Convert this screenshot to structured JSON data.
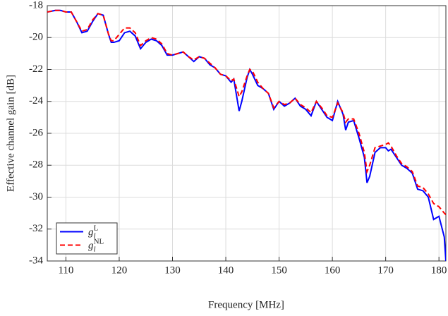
{
  "chart_data": {
    "type": "line",
    "xlabel": "Frequency [MHz]",
    "ylabel": "Effective channel gain [dB]",
    "x": [
      106.5,
      108,
      109,
      110,
      111,
      112,
      113,
      114,
      115,
      116,
      117,
      118,
      118.5,
      119,
      120,
      121,
      122,
      123,
      124,
      125,
      126,
      127,
      128,
      129,
      130,
      131,
      132,
      133,
      134,
      135,
      136,
      137,
      138,
      139,
      140,
      141,
      141.5,
      142.5,
      143,
      144,
      144.5,
      145,
      146,
      147,
      148,
      149,
      150,
      151,
      152,
      153,
      154,
      155,
      156,
      157,
      158,
      159,
      160,
      161,
      162,
      162.5,
      163,
      164,
      165,
      166,
      166.5,
      167,
      168,
      169,
      170,
      170.5,
      171,
      172,
      173,
      174,
      175,
      176,
      177,
      178,
      179,
      180,
      181,
      181.3
    ],
    "series": [
      {
        "name": "g",
        "subscript": "l",
        "superscript": "L",
        "color": "#0000ff",
        "dash": "solid",
        "values": [
          -18.4,
          -18.3,
          -18.3,
          -18.4,
          -18.4,
          -19.0,
          -19.7,
          -19.6,
          -19.0,
          -18.5,
          -18.6,
          -19.8,
          -20.3,
          -20.3,
          -20.2,
          -19.7,
          -19.6,
          -19.9,
          -20.7,
          -20.3,
          -20.1,
          -20.2,
          -20.5,
          -21.1,
          -21.1,
          -21.0,
          -20.9,
          -21.2,
          -21.5,
          -21.2,
          -21.3,
          -21.7,
          -21.9,
          -22.3,
          -22.4,
          -22.8,
          -22.6,
          -24.6,
          -24.0,
          -22.5,
          -22.0,
          -22.3,
          -23.0,
          -23.2,
          -23.5,
          -24.5,
          -24.0,
          -24.3,
          -24.1,
          -23.8,
          -24.3,
          -24.5,
          -24.9,
          -24.0,
          -24.5,
          -25.0,
          -25.2,
          -24.0,
          -24.8,
          -25.8,
          -25.3,
          -25.2,
          -26.3,
          -27.5,
          -29.1,
          -28.7,
          -27.2,
          -26.9,
          -26.9,
          -27.1,
          -27.0,
          -27.5,
          -28.0,
          -28.2,
          -28.5,
          -29.5,
          -29.6,
          -30.0,
          -31.4,
          -31.2,
          -32.5,
          -34.0
        ]
      },
      {
        "name": "g",
        "subscript": "l",
        "superscript": "NL",
        "color": "#ff0000",
        "dash": "dashed",
        "values": [
          -18.4,
          -18.3,
          -18.3,
          -18.4,
          -18.4,
          -19.0,
          -19.6,
          -19.5,
          -18.9,
          -18.5,
          -18.6,
          -19.8,
          -20.2,
          -20.2,
          -19.8,
          -19.4,
          -19.4,
          -19.7,
          -20.5,
          -20.2,
          -20.0,
          -20.1,
          -20.4,
          -21.0,
          -21.1,
          -21.0,
          -20.9,
          -21.2,
          -21.4,
          -21.2,
          -21.3,
          -21.6,
          -21.9,
          -22.3,
          -22.4,
          -22.7,
          -22.6,
          -23.7,
          -23.4,
          -22.4,
          -22.0,
          -22.1,
          -22.8,
          -23.2,
          -23.5,
          -24.4,
          -24.0,
          -24.2,
          -24.1,
          -23.8,
          -24.2,
          -24.4,
          -24.7,
          -24.0,
          -24.4,
          -24.9,
          -25.0,
          -24.1,
          -24.7,
          -25.3,
          -25.1,
          -25.1,
          -26.0,
          -27.2,
          -28.4,
          -28.0,
          -26.9,
          -26.8,
          -26.7,
          -26.6,
          -26.8,
          -27.4,
          -27.9,
          -28.1,
          -28.4,
          -29.3,
          -29.4,
          -29.8,
          -30.4,
          -30.6,
          -31.0,
          -31.1
        ]
      }
    ],
    "xlim": [
      106.5,
      181.3
    ],
    "xticks": [
      110,
      120,
      130,
      140,
      150,
      160,
      170,
      180
    ],
    "ylim": [
      -34,
      -18
    ],
    "yticks": [
      -34,
      -32,
      -30,
      -28,
      -26,
      -24,
      -22,
      -20,
      -18
    ],
    "grid": true,
    "legend": "lower left"
  }
}
